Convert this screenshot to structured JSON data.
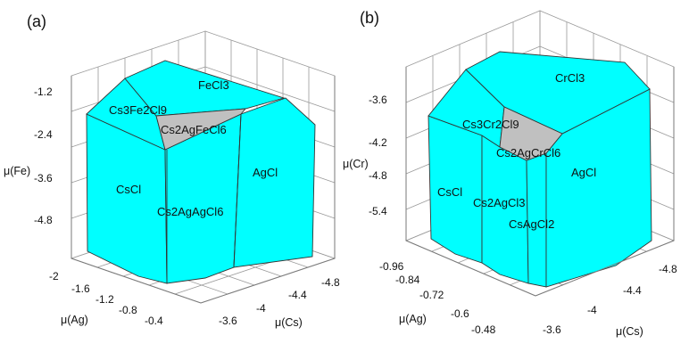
{
  "colors": {
    "phase_fill": "#00FFFF",
    "target_fill": "#C0C0C0",
    "edge": "#333333",
    "grid": "#9a9a9a"
  },
  "panels": [
    {
      "label": "(a)",
      "z_axis_label": "μ(Fe)",
      "z_ticks": [
        "-1.2",
        "-2.4",
        "-3.6",
        "-4.8"
      ],
      "left_axis_label": "μ(Ag)",
      "left_ticks": [
        "-2",
        "-1.6",
        "-1.2",
        "-0.8",
        "-0.4"
      ],
      "right_axis_label": "μ(Cs)",
      "right_ticks": [
        "-3.6",
        "-4",
        "-4.4",
        "-4.8"
      ],
      "phases": [
        "FeCl3",
        "Cs3Fe2Cl9",
        "Cs2AgFeCl6",
        "CsCl",
        "AgCl",
        "Cs2AgAgCl6"
      ]
    },
    {
      "label": "(b)",
      "z_axis_label": "μ(Cr)",
      "z_ticks": [
        "-3.6",
        "-4.2",
        "-4.8",
        "-5.4"
      ],
      "left_axis_label": "μ(Ag)",
      "left_ticks": [
        "-0.96",
        "-0.84",
        "-0.72",
        "-0.6",
        "-0.48"
      ],
      "right_axis_label": "μ(Cs)",
      "right_ticks": [
        "-3.6",
        "-4",
        "-4.4",
        "-4.8"
      ],
      "phases": [
        "CrCl3",
        "Cs3Cr2Cl9",
        "Cs2AgCrCl6",
        "AgCl",
        "CsCl",
        "Cs2AgCl3",
        "CsAgCl2"
      ]
    }
  ]
}
